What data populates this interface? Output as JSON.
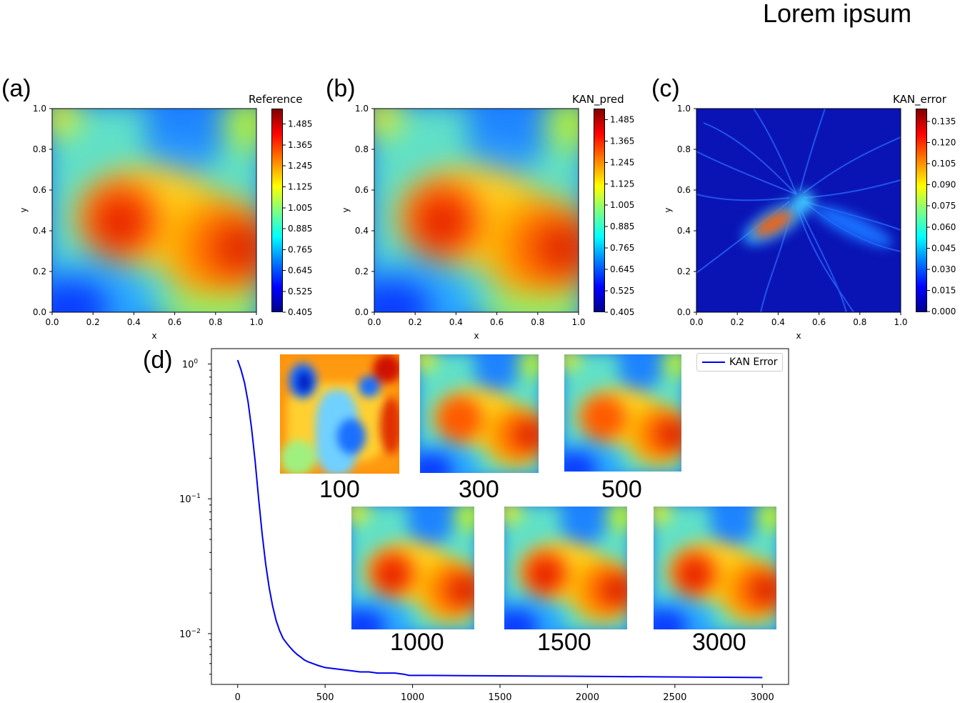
{
  "header": {
    "title": "Lorem ipsum"
  },
  "chart_data": [
    {
      "panel": "(a)",
      "type": "heatmap",
      "title": "Reference",
      "xlabel": "x",
      "ylabel": "y",
      "xlim": [
        0,
        1
      ],
      "ylim": [
        0,
        1
      ],
      "xticks": [
        "0.0",
        "0.2",
        "0.4",
        "0.6",
        "0.8",
        "1.0"
      ],
      "yticks": [
        "0.0",
        "0.2",
        "0.4",
        "0.6",
        "0.8",
        "1.0"
      ],
      "colormap": "jet",
      "colorbar_ticks": [
        "1.485",
        "1.365",
        "1.245",
        "1.125",
        "1.005",
        "0.885",
        "0.765",
        "0.645",
        "0.525",
        "0.405"
      ]
    },
    {
      "panel": "(b)",
      "type": "heatmap",
      "title": "KAN_pred",
      "xlabel": "x",
      "ylabel": "y",
      "xlim": [
        0,
        1
      ],
      "ylim": [
        0,
        1
      ],
      "xticks": [
        "0.0",
        "0.2",
        "0.4",
        "0.6",
        "0.8",
        "1.0"
      ],
      "yticks": [
        "0.0",
        "0.2",
        "0.4",
        "0.6",
        "0.8",
        "1.0"
      ],
      "colormap": "jet",
      "colorbar_ticks": [
        "1.485",
        "1.365",
        "1.245",
        "1.125",
        "1.005",
        "0.885",
        "0.765",
        "0.645",
        "0.525",
        "0.405"
      ]
    },
    {
      "panel": "(c)",
      "type": "heatmap",
      "title": "KAN_error",
      "xlabel": "x",
      "ylabel": "y",
      "xlim": [
        0,
        1
      ],
      "ylim": [
        0,
        1
      ],
      "xticks": [
        "0.0",
        "0.2",
        "0.4",
        "0.6",
        "0.8",
        "1.0"
      ],
      "yticks": [
        "0.0",
        "0.2",
        "0.4",
        "0.6",
        "0.8",
        "1.0"
      ],
      "colormap": "jet",
      "colorbar_ticks": [
        "0.135",
        "0.120",
        "0.105",
        "0.090",
        "0.075",
        "0.060",
        "0.045",
        "0.030",
        "0.015",
        "0.000"
      ]
    },
    {
      "panel": "(d)",
      "type": "line",
      "title": "",
      "xlabel": "",
      "ylabel": "",
      "yscale": "log",
      "xlim": [
        -150,
        3150
      ],
      "ylim": [
        0.0042,
        1.3
      ],
      "xticks": [
        "0",
        "500",
        "1000",
        "1500",
        "2000",
        "2500",
        "3000"
      ],
      "ytick_values": [
        1,
        0.1,
        0.01
      ],
      "legend": {
        "position": "top-right",
        "label": "KAN Error"
      },
      "series": [
        {
          "name": "KAN Error",
          "color": "#0000ee",
          "x": [
            0,
            20,
            40,
            60,
            80,
            100,
            120,
            140,
            160,
            180,
            200,
            220,
            240,
            260,
            280,
            300,
            320,
            340,
            360,
            380,
            400,
            430,
            460,
            500,
            550,
            600,
            650,
            700,
            750,
            800,
            850,
            900,
            950,
            980,
            1000,
            1100,
            1300,
            1500,
            1800,
            2100,
            2400,
            2700,
            3000
          ],
          "y": [
            1.07,
            0.9,
            0.72,
            0.52,
            0.33,
            0.19,
            0.1,
            0.055,
            0.033,
            0.022,
            0.016,
            0.0125,
            0.0105,
            0.0092,
            0.0085,
            0.0079,
            0.0074,
            0.007,
            0.0067,
            0.0064,
            0.0062,
            0.006,
            0.0058,
            0.0056,
            0.0055,
            0.0054,
            0.0053,
            0.0052,
            0.0052,
            0.0051,
            0.0051,
            0.0051,
            0.005,
            0.0049,
            0.0049,
            0.0049,
            0.00488,
            0.00486,
            0.00484,
            0.00481,
            0.00478,
            0.00475,
            0.00472
          ]
        }
      ],
      "inset_labels": [
        "100",
        "300",
        "500",
        "1000",
        "1500",
        "3000"
      ]
    }
  ]
}
